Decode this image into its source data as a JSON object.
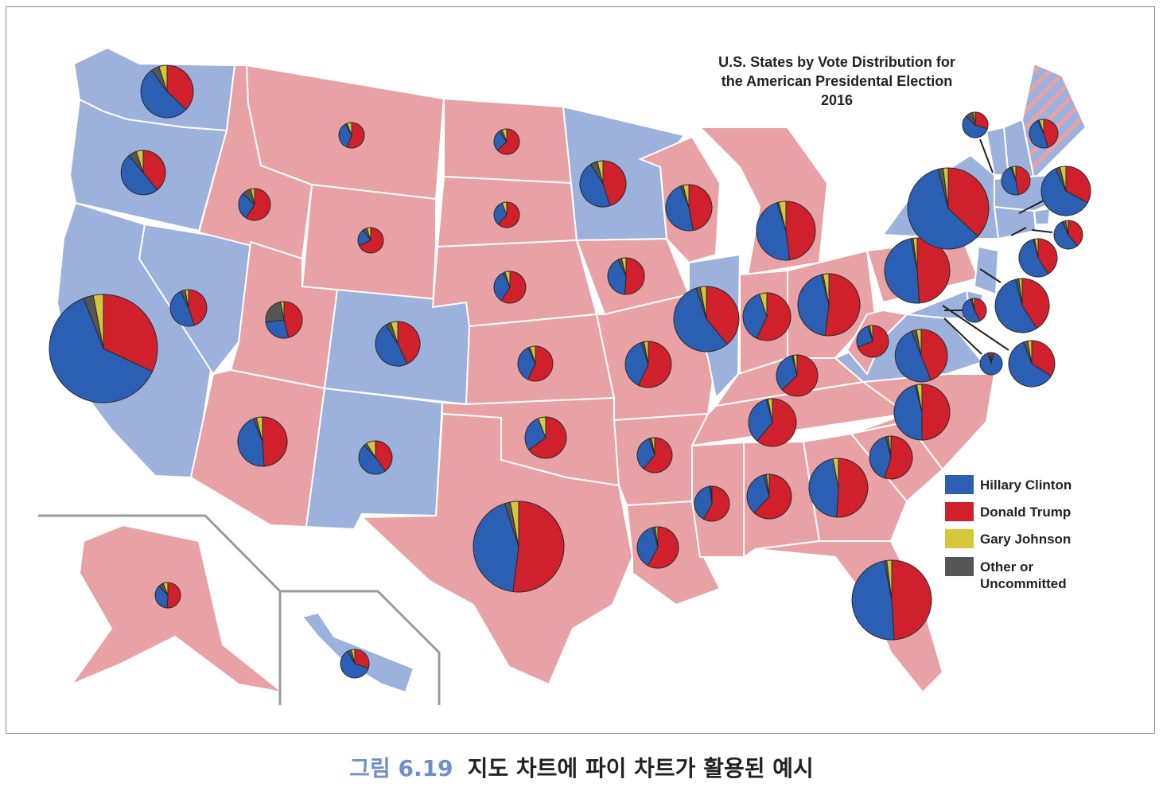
{
  "chart_data": {
    "type": "pie",
    "title_lines": [
      "U.S. States by Vote Distribution for",
      "the American Presidental Election",
      "2016"
    ],
    "legend": [
      {
        "name": "Hillary Clinton",
        "color": "#2a5fb4"
      },
      {
        "name": "Donald Trump",
        "color": "#d0202c"
      },
      {
        "name": "Gary Johnson",
        "color": "#d6c63a"
      },
      {
        "name": "Other or\nUncommitted",
        "color": "#555555"
      }
    ],
    "series_names": [
      "Hillary Clinton",
      "Donald Trump",
      "Gary Johnson",
      "Other or Uncommitted"
    ],
    "state_fill": {
      "clinton": "#9db1dd",
      "trump": "#e8a2a5",
      "border": "#ffffff"
    },
    "states": [
      {
        "state": "WA",
        "winner": "clinton",
        "shares": [
          0.53,
          0.37,
          0.05,
          0.05
        ]
      },
      {
        "state": "OR",
        "winner": "clinton",
        "shares": [
          0.5,
          0.39,
          0.05,
          0.06
        ]
      },
      {
        "state": "CA",
        "winner": "clinton",
        "shares": [
          0.62,
          0.32,
          0.03,
          0.03
        ]
      },
      {
        "state": "NV",
        "winner": "clinton",
        "shares": [
          0.48,
          0.45,
          0.03,
          0.04
        ]
      },
      {
        "state": "ID",
        "winner": "trump",
        "shares": [
          0.28,
          0.59,
          0.04,
          0.09
        ]
      },
      {
        "state": "MT",
        "winner": "trump",
        "shares": [
          0.36,
          0.56,
          0.06,
          0.02
        ]
      },
      {
        "state": "WY",
        "winner": "trump",
        "shares": [
          0.22,
          0.68,
          0.05,
          0.05
        ]
      },
      {
        "state": "UT",
        "winner": "trump",
        "shares": [
          0.27,
          0.46,
          0.03,
          0.24
        ]
      },
      {
        "state": "CO",
        "winner": "clinton",
        "shares": [
          0.48,
          0.43,
          0.05,
          0.04
        ]
      },
      {
        "state": "AZ",
        "winner": "trump",
        "shares": [
          0.45,
          0.49,
          0.04,
          0.02
        ]
      },
      {
        "state": "NM",
        "winner": "clinton",
        "shares": [
          0.48,
          0.4,
          0.09,
          0.03
        ]
      },
      {
        "state": "ND",
        "winner": "trump",
        "shares": [
          0.27,
          0.63,
          0.06,
          0.04
        ]
      },
      {
        "state": "SD",
        "winner": "trump",
        "shares": [
          0.32,
          0.62,
          0.06,
          0.0
        ]
      },
      {
        "state": "NE",
        "winner": "trump",
        "shares": [
          0.34,
          0.59,
          0.05,
          0.02
        ]
      },
      {
        "state": "KS",
        "winner": "trump",
        "shares": [
          0.36,
          0.57,
          0.05,
          0.02
        ]
      },
      {
        "state": "OK",
        "winner": "trump",
        "shares": [
          0.29,
          0.65,
          0.06,
          0.0
        ]
      },
      {
        "state": "TX",
        "winner": "trump",
        "shares": [
          0.43,
          0.52,
          0.03,
          0.02
        ]
      },
      {
        "state": "MN",
        "winner": "clinton",
        "shares": [
          0.46,
          0.45,
          0.04,
          0.05
        ]
      },
      {
        "state": "IA",
        "winner": "trump",
        "shares": [
          0.42,
          0.51,
          0.04,
          0.03
        ]
      },
      {
        "state": "MO",
        "winner": "trump",
        "shares": [
          0.38,
          0.57,
          0.03,
          0.02
        ]
      },
      {
        "state": "AR",
        "winner": "trump",
        "shares": [
          0.34,
          0.61,
          0.03,
          0.02
        ]
      },
      {
        "state": "LA",
        "winner": "trump",
        "shares": [
          0.38,
          0.58,
          0.02,
          0.02
        ]
      },
      {
        "state": "WI",
        "winner": "trump",
        "shares": [
          0.47,
          0.47,
          0.04,
          0.02
        ]
      },
      {
        "state": "IL",
        "winner": "clinton",
        "shares": [
          0.56,
          0.39,
          0.03,
          0.02
        ]
      },
      {
        "state": "MI",
        "winner": "trump",
        "shares": [
          0.47,
          0.48,
          0.04,
          0.01
        ]
      },
      {
        "state": "IN",
        "winner": "trump",
        "shares": [
          0.38,
          0.57,
          0.05,
          0.0
        ]
      },
      {
        "state": "OH",
        "winner": "trump",
        "shares": [
          0.44,
          0.52,
          0.03,
          0.01
        ]
      },
      {
        "state": "KY",
        "winner": "trump",
        "shares": [
          0.33,
          0.63,
          0.03,
          0.01
        ]
      },
      {
        "state": "TN",
        "winner": "trump",
        "shares": [
          0.35,
          0.61,
          0.03,
          0.01
        ]
      },
      {
        "state": "MS",
        "winner": "trump",
        "shares": [
          0.4,
          0.58,
          0.01,
          0.01
        ]
      },
      {
        "state": "AL",
        "winner": "trump",
        "shares": [
          0.34,
          0.62,
          0.02,
          0.02
        ]
      },
      {
        "state": "GA",
        "winner": "trump",
        "shares": [
          0.46,
          0.51,
          0.03,
          0.0
        ]
      },
      {
        "state": "FL",
        "winner": "trump",
        "shares": [
          0.48,
          0.49,
          0.02,
          0.01
        ]
      },
      {
        "state": "SC",
        "winner": "trump",
        "shares": [
          0.41,
          0.55,
          0.02,
          0.02
        ]
      },
      {
        "state": "NC",
        "winner": "trump",
        "shares": [
          0.46,
          0.5,
          0.03,
          0.01
        ]
      },
      {
        "state": "VA",
        "winner": "clinton",
        "shares": [
          0.5,
          0.44,
          0.03,
          0.03
        ]
      },
      {
        "state": "WV",
        "winner": "trump",
        "shares": [
          0.26,
          0.69,
          0.03,
          0.02
        ]
      },
      {
        "state": "PA",
        "winner": "trump",
        "shares": [
          0.48,
          0.49,
          0.02,
          0.01
        ]
      },
      {
        "state": "NY",
        "winner": "clinton",
        "shares": [
          0.59,
          0.37,
          0.02,
          0.02
        ]
      },
      {
        "state": "VT",
        "winner": "clinton",
        "shares": [
          0.57,
          0.3,
          0.03,
          0.1
        ]
      },
      {
        "state": "NH",
        "winner": "clinton",
        "shares": [
          0.47,
          0.47,
          0.04,
          0.02
        ]
      },
      {
        "state": "ME",
        "winner": "clinton",
        "shares": [
          0.48,
          0.45,
          0.05,
          0.02
        ]
      },
      {
        "state": "MA",
        "winner": "clinton",
        "shares": [
          0.6,
          0.33,
          0.04,
          0.03
        ]
      },
      {
        "state": "RI",
        "winner": "clinton",
        "shares": [
          0.54,
          0.39,
          0.03,
          0.04
        ]
      },
      {
        "state": "CT",
        "winner": "clinton",
        "shares": [
          0.55,
          0.41,
          0.03,
          0.01
        ]
      },
      {
        "state": "NJ",
        "winner": "clinton",
        "shares": [
          0.55,
          0.41,
          0.02,
          0.02
        ]
      },
      {
        "state": "DE",
        "winner": "clinton",
        "shares": [
          0.53,
          0.42,
          0.03,
          0.02
        ]
      },
      {
        "state": "MD",
        "winner": "clinton",
        "shares": [
          0.6,
          0.34,
          0.03,
          0.03
        ]
      },
      {
        "state": "DC",
        "winner": "clinton",
        "shares": [
          0.91,
          0.04,
          0.02,
          0.03
        ]
      },
      {
        "state": "AK",
        "winner": "trump",
        "shares": [
          0.37,
          0.51,
          0.06,
          0.06
        ]
      },
      {
        "state": "HI",
        "winner": "clinton",
        "shares": [
          0.62,
          0.3,
          0.04,
          0.04
        ]
      }
    ]
  },
  "caption": {
    "figure_number": "그림 6.19",
    "text": "지도 차트에 파이 차트가 활용된 예시"
  }
}
